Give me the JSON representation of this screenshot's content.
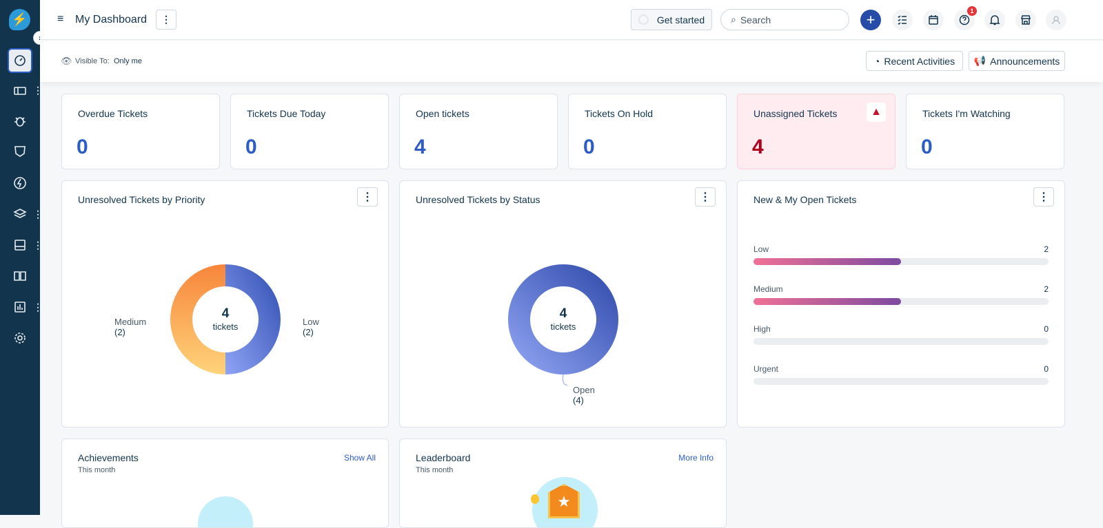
{
  "header": {
    "title": "My Dashboard",
    "get_started": "Get started",
    "search_placeholder": "Search",
    "help_badge": "1"
  },
  "subheader": {
    "visible_label": "Visible To:",
    "visible_value": "Only me",
    "recent_activities": "Recent Activities",
    "announcements": "Announcements"
  },
  "stats": [
    {
      "title": "Overdue Tickets",
      "value": "0"
    },
    {
      "title": "Tickets Due Today",
      "value": "0"
    },
    {
      "title": "Open tickets",
      "value": "4"
    },
    {
      "title": "Tickets On Hold",
      "value": "0"
    },
    {
      "title": "Unassigned Tickets",
      "value": "4"
    },
    {
      "title": "Tickets I'm Watching",
      "value": "0"
    }
  ],
  "priority_widget": {
    "title": "Unresolved Tickets by Priority",
    "total": "4",
    "unit": "tickets",
    "segments": [
      {
        "label": "Low",
        "count": "(2)",
        "value": 2,
        "color": "#3d5ec4"
      },
      {
        "label": "Medium",
        "count": "(2)",
        "value": 2,
        "color": "#f8a145"
      }
    ]
  },
  "status_widget": {
    "title": "Unresolved Tickets by Status",
    "total": "4",
    "unit": "tickets",
    "segments": [
      {
        "label": "Open",
        "count": "(4)",
        "value": 4,
        "color": "#4a63cc"
      }
    ]
  },
  "open_widget": {
    "title": "New & My Open Tickets",
    "max": 4,
    "rows": [
      {
        "label": "Low",
        "value": "2"
      },
      {
        "label": "Medium",
        "value": "2"
      },
      {
        "label": "High",
        "value": "0"
      },
      {
        "label": "Urgent",
        "value": "0"
      }
    ]
  },
  "achievements": {
    "title": "Achievements",
    "subtitle": "This month",
    "link": "Show All"
  },
  "leaderboard": {
    "title": "Leaderboard",
    "subtitle": "This month",
    "link": "More Info"
  },
  "colors": {
    "sidebar": "#12344d",
    "accent": "#2c5cc5",
    "alert": "#b0001e"
  }
}
